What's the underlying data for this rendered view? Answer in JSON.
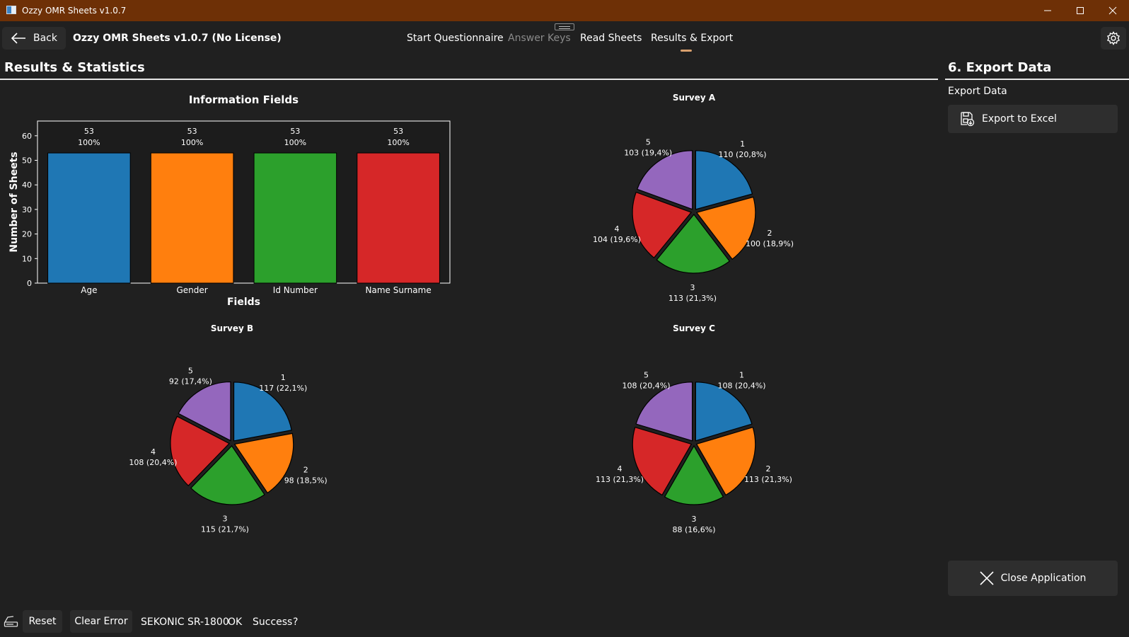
{
  "window": {
    "title": "Ozzy OMR Sheets v1.0.7"
  },
  "toolbar": {
    "back_label": "Back",
    "app_name": "Ozzy OMR Sheets v1.0.7 (No License)",
    "tabs": [
      {
        "label": "Start Questionnaire"
      },
      {
        "label": "Answer Keys"
      },
      {
        "label": "Read Sheets"
      },
      {
        "label": "Results & Export"
      }
    ]
  },
  "main": {
    "title": "Results & Statistics"
  },
  "side": {
    "title": "6. Export Data",
    "export_label": "Export Data",
    "export_button": "Export to Excel",
    "close_button": "Close Application"
  },
  "status": {
    "reset_label": "Reset",
    "clear_error_label": "Clear Error",
    "device": "SEKONIC SR-1800",
    "ok": "OK",
    "success": "Success",
    "help": "?"
  },
  "colors": {
    "titlebar": "#6e3006",
    "background": "#202020",
    "series": [
      "#1f77b4",
      "#ff7f0e",
      "#2ca02c",
      "#d62728",
      "#9467bd"
    ]
  },
  "chart_data": [
    {
      "type": "bar",
      "title": "Information Fields",
      "xlabel": "Fields",
      "ylabel": "Number of Sheets",
      "categories": [
        "Age",
        "Gender",
        "Id Number",
        "Name Surname"
      ],
      "values": [
        53,
        53,
        53,
        53
      ],
      "count_labels": [
        "53",
        "53",
        "53",
        "53"
      ],
      "pct_labels": [
        "100%",
        "100%",
        "100%",
        "100%"
      ],
      "ylim": [
        0,
        66
      ],
      "yticks": [
        0,
        10,
        20,
        30,
        40,
        50,
        60
      ],
      "ytick_labels": [
        "0",
        "10",
        "20",
        "30",
        "40",
        "50",
        "60"
      ]
    },
    {
      "type": "pie",
      "title": "Survey A",
      "categories": [
        "1",
        "2",
        "3",
        "4",
        "5"
      ],
      "values": [
        110,
        100,
        113,
        104,
        103
      ],
      "value_labels": [
        "110 (20,8%)",
        "100 (18,9%)",
        "113 (21,3%)",
        "104 (19,6%)",
        "103 (19,4%)"
      ]
    },
    {
      "type": "pie",
      "title": "Survey B",
      "categories": [
        "1",
        "2",
        "3",
        "4",
        "5"
      ],
      "values": [
        117,
        98,
        115,
        108,
        92
      ],
      "value_labels": [
        "117 (22,1%)",
        "98 (18,5%)",
        "115 (21,7%)",
        "108 (20,4%)",
        "92 (17,4%)"
      ]
    },
    {
      "type": "pie",
      "title": "Survey C",
      "categories": [
        "1",
        "2",
        "3",
        "4",
        "5"
      ],
      "values": [
        108,
        113,
        88,
        113,
        108
      ],
      "value_labels": [
        "108 (20,4%)",
        "113 (21,3%)",
        "88 (16,6%)",
        "113 (21,3%)",
        "108 (20,4%)"
      ]
    }
  ]
}
